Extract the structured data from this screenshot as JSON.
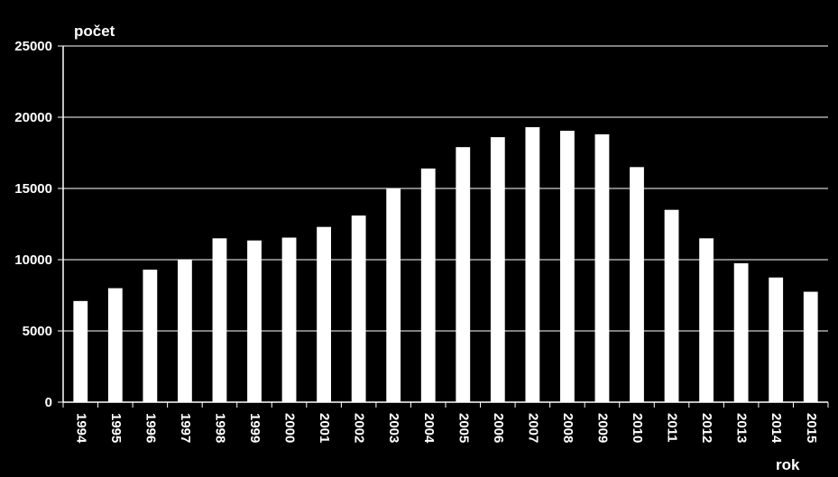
{
  "chart_data": {
    "type": "bar",
    "title": "",
    "ylabel": "počet",
    "xlabel": "rok",
    "ylim": [
      0,
      25000
    ],
    "yticks": [
      0,
      5000,
      10000,
      15000,
      20000,
      25000
    ],
    "grid": true,
    "categories": [
      "1994",
      "1995",
      "1996",
      "1997",
      "1998",
      "1999",
      "2000",
      "2001",
      "2002",
      "2003",
      "2004",
      "2005",
      "2006",
      "2007",
      "2008",
      "2009",
      "2010",
      "2011",
      "2012",
      "2013",
      "2014",
      "2015"
    ],
    "values": [
      7100,
      8000,
      9300,
      10000,
      11500,
      11350,
      11550,
      12300,
      13100,
      15000,
      16400,
      17900,
      18600,
      19300,
      19050,
      18800,
      16500,
      13500,
      11500,
      9750,
      8750,
      7750
    ],
    "colors": {
      "background": "#000000",
      "bar": "#ffffff",
      "grid": "#ffffff",
      "text": "#ffffff"
    }
  }
}
